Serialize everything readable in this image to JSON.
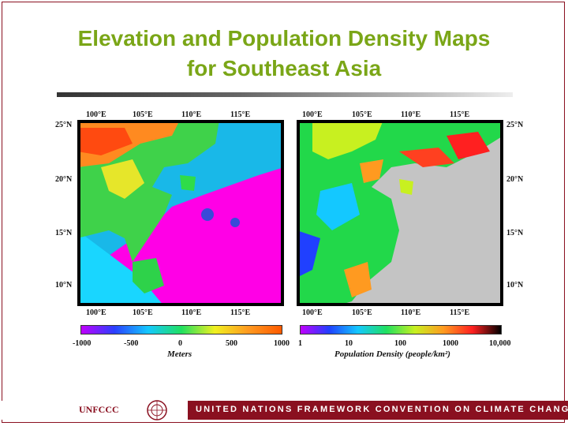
{
  "title": {
    "line1": "Elevation and Population Density Maps",
    "line2": "for Southeast Asia"
  },
  "elevation_map": {
    "lon_labels": [
      "100°E",
      "105°E",
      "110°E",
      "115°E"
    ],
    "lat_labels": [
      "25°N",
      "20°N",
      "15°N",
      "10°N"
    ],
    "colorbar_ticks": [
      "-1000",
      "-500",
      "0",
      "500",
      "1000"
    ],
    "unit": "Meters",
    "colors": [
      "#c000ff",
      "#2a40ff",
      "#14c8ff",
      "#20e060",
      "#f0f020",
      "#ff9a20",
      "#ff5a00"
    ]
  },
  "population_map": {
    "lon_labels": [
      "100°E",
      "105°E",
      "110°E",
      "115°E"
    ],
    "lat_labels": [
      "25°N",
      "20°N",
      "15°N",
      "10°N"
    ],
    "colorbar_ticks": [
      "1",
      "10",
      "100",
      "1000",
      "10,000"
    ],
    "unit": "Population Density (people/km²)",
    "colors": [
      "#c000ff",
      "#2040ff",
      "#14c8ff",
      "#20e060",
      "#c8f020",
      "#ff9a20",
      "#ff2020",
      "#000000"
    ]
  },
  "footer": {
    "logo_text": "UNFCCC",
    "org": "UNITED NATIONS FRAMEWORK CONVENTION ON CLIMATE CHANGE"
  }
}
